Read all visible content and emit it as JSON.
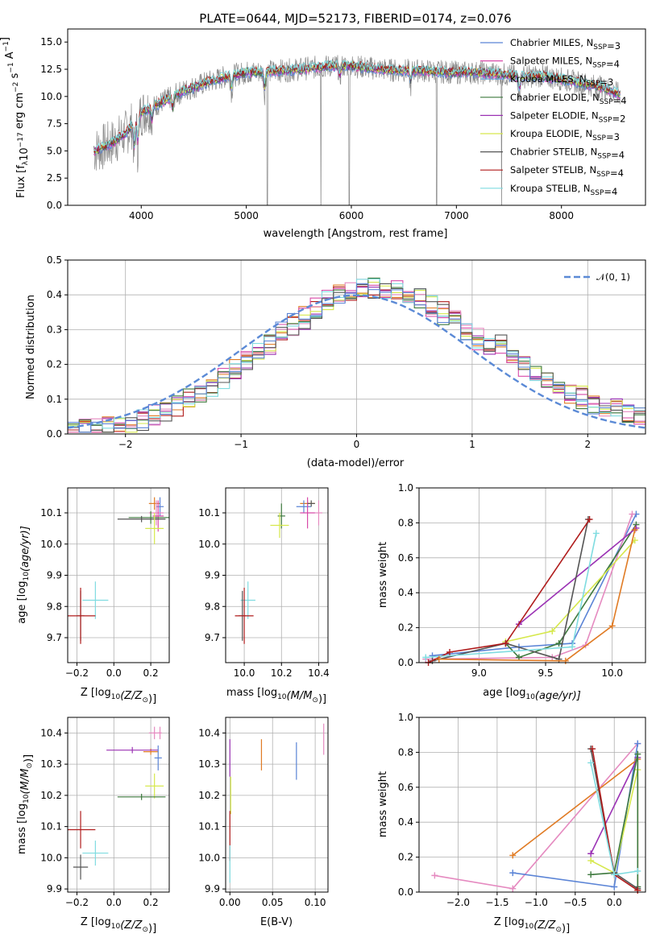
{
  "colors": {
    "cm": "#5b84d6",
    "sm": "#d84aa9",
    "km": "#6aa6d6",
    "ce": "#3f7a3f",
    "se": "#9b32b4",
    "ke": "#d6e84c",
    "cs": "#555555",
    "ss": "#b01c1c",
    "ks": "#7fdce0",
    "orange": "#e07b24",
    "pink": "#e58ac0",
    "observed": "#8a8a8a",
    "normal": "#5b8ad6"
  },
  "chart_data": [
    {
      "id": "spectrum",
      "type": "line",
      "title": "PLATE=0644, MJD=52173, FIBERID=0174, z=0.076",
      "xlabel": "wavelength [Angstrom, rest frame]",
      "ylabel_parts": [
        "Flux [f",
        "λ",
        "10",
        "−17",
        " erg cm",
        "−2",
        " s",
        "−1",
        " A",
        "−1",
        "]"
      ],
      "xlim": [
        3300,
        8800
      ],
      "ylim": [
        0,
        16.2
      ],
      "xticks": [
        4000,
        5000,
        6000,
        7000,
        8000
      ],
      "yticks": [
        0.0,
        2.5,
        5.0,
        7.5,
        10.0,
        12.5,
        15.0
      ],
      "continuum_x": [
        3550,
        3700,
        3850,
        4000,
        4200,
        4400,
        4600,
        4800,
        5000,
        5200,
        5400,
        5600,
        5800,
        6000,
        6200,
        6400,
        6600,
        6800,
        7000,
        7200,
        7400,
        7600,
        7800,
        8000,
        8200,
        8400,
        8550
      ],
      "continuum_y": [
        5.0,
        5.6,
        6.6,
        8.5,
        9.5,
        10.5,
        11.2,
        11.8,
        12.2,
        12.3,
        12.4,
        12.6,
        12.8,
        12.8,
        12.6,
        12.4,
        12.4,
        12.3,
        12.2,
        12.2,
        12.1,
        11.8,
        11.9,
        11.6,
        11.2,
        10.8,
        10.2
      ],
      "legend": [
        {
          "label": "Chabrier MILES, N",
          "sub": "SSP",
          "tail": "=3",
          "color": "cm"
        },
        {
          "label": "Salpeter MILES, N",
          "sub": "SSP",
          "tail": "=4",
          "color": "sm"
        },
        {
          "label": "Kroupa MILES, N",
          "sub": "SSP",
          "tail": "=3",
          "color": "km"
        },
        {
          "label": "Chabrier ELODIE, N",
          "sub": "SSP",
          "tail": "=4",
          "color": "ce"
        },
        {
          "label": "Salpeter ELODIE, N",
          "sub": "SSP",
          "tail": "=2",
          "color": "se"
        },
        {
          "label": "Kroupa ELODIE, N",
          "sub": "SSP",
          "tail": "=3",
          "color": "ke"
        },
        {
          "label": "Chabrier STELIB, N",
          "sub": "SSP",
          "tail": "=4",
          "color": "cs"
        },
        {
          "label": "Salpeter STELIB, N",
          "sub": "SSP",
          "tail": "=4",
          "color": "ss"
        },
        {
          "label": "Kroupa STELIB, N",
          "sub": "SSP",
          "tail": "=4",
          "color": "ks"
        }
      ]
    },
    {
      "id": "residuals",
      "type": "line",
      "xlabel": "(data-model)/error",
      "ylabel": "Normed distribution",
      "xlim": [
        -2.5,
        2.5
      ],
      "ylim": [
        0,
        0.5
      ],
      "xticks": [
        -2,
        -1,
        0,
        1,
        2
      ],
      "xtick_labels": [
        "−2",
        "−1",
        "0",
        "1",
        "2"
      ],
      "yticks": [
        0.0,
        0.1,
        0.2,
        0.3,
        0.4,
        0.5
      ],
      "legend": "𝒩(0, 1)",
      "bin_width": 0.1,
      "series_colors": [
        "orange",
        "ss",
        "se",
        "sm",
        "pink",
        "ke",
        "ce",
        "ks",
        "cs",
        "cm"
      ]
    },
    {
      "id": "z_age",
      "type": "scatter",
      "xlabel_pre": "Z [log",
      "xlabel_sub": "10",
      "xlabel_post": "(Z/Z",
      "xlabel_end": ")]",
      "ylabel_pre": "age  [log",
      "ylabel_sub": "10",
      "ylabel_post": "(age/yr)]",
      "xlim": [
        -0.25,
        0.3
      ],
      "ylim": [
        9.62,
        10.18
      ],
      "xticks": [
        -0.2,
        0.0,
        0.2
      ],
      "xtick_labels": [
        "−0.2",
        "0.0",
        "0.2"
      ],
      "yticks": [
        9.7,
        9.8,
        9.9,
        10.0,
        10.1
      ],
      "points": [
        {
          "x": 0.22,
          "y": 10.13,
          "xerr": 0.03,
          "yerr": 0.02,
          "color": "orange"
        },
        {
          "x": 0.25,
          "y": 10.12,
          "xerr": 0.02,
          "yerr": 0.03,
          "color": "cm"
        },
        {
          "x": 0.23,
          "y": 10.1,
          "xerr": 0.04,
          "yerr": 0.04,
          "color": "pink"
        },
        {
          "x": 0.24,
          "y": 10.09,
          "xerr": 0.03,
          "yerr": 0.05,
          "color": "sm"
        },
        {
          "x": 0.2,
          "y": 10.085,
          "xerr": 0.12,
          "yerr": 0.02,
          "color": "ce"
        },
        {
          "x": 0.15,
          "y": 10.08,
          "xerr": 0.13,
          "yerr": 0.01,
          "color": "cs"
        },
        {
          "x": 0.22,
          "y": 10.05,
          "xerr": 0.05,
          "yerr": 0.05,
          "color": "ke"
        },
        {
          "x": -0.1,
          "y": 9.82,
          "xerr": 0.07,
          "yerr": 0.06,
          "color": "ks"
        },
        {
          "x": -0.18,
          "y": 9.77,
          "xerr": 0.02,
          "yerr": 0.08,
          "color": "cs"
        },
        {
          "x": -0.18,
          "y": 9.77,
          "xerr": 0.08,
          "yerr": 0.09,
          "color": "ss"
        }
      ]
    },
    {
      "id": "mass_age",
      "type": "scatter",
      "xlabel_pre": "mass [log",
      "xlabel_sub": "10",
      "xlabel_post": "(M/M",
      "xlabel_end": ")]",
      "xlim": [
        9.9,
        10.45
      ],
      "ylim": [
        9.62,
        10.18
      ],
      "xticks": [
        10.0,
        10.2,
        10.4
      ],
      "xtick_labels": [
        "10.0",
        "10.2",
        "10.4"
      ],
      "yticks": [
        9.7,
        9.8,
        9.9,
        10.0,
        10.1
      ],
      "points": [
        {
          "x": 10.34,
          "y": 10.13,
          "xerr": 0.04,
          "yerr": 0.01,
          "color": "orange"
        },
        {
          "x": 10.32,
          "y": 10.12,
          "xerr": 0.04,
          "yerr": 0.02,
          "color": "cm"
        },
        {
          "x": 10.4,
          "y": 10.1,
          "xerr": 0.02,
          "yerr": 0.04,
          "color": "pink"
        },
        {
          "x": 10.34,
          "y": 10.1,
          "xerr": 0.04,
          "yerr": 0.05,
          "color": "sm"
        },
        {
          "x": 10.2,
          "y": 10.09,
          "xerr": 0.02,
          "yerr": 0.04,
          "color": "ce"
        },
        {
          "x": 10.19,
          "y": 10.06,
          "xerr": 0.05,
          "yerr": 0.04,
          "color": "ke"
        },
        {
          "x": 10.36,
          "y": 10.13,
          "xerr": 0.02,
          "yerr": 0.01,
          "color": "cs"
        },
        {
          "x": 10.02,
          "y": 9.82,
          "xerr": 0.04,
          "yerr": 0.06,
          "color": "ks"
        },
        {
          "x": 9.99,
          "y": 9.77,
          "xerr": 0.02,
          "yerr": 0.08,
          "color": "cs"
        },
        {
          "x": 10.0,
          "y": 9.77,
          "xerr": 0.05,
          "yerr": 0.09,
          "color": "ss"
        }
      ]
    },
    {
      "id": "age_weight",
      "type": "line",
      "xlabel_pre": "age  [log",
      "xlabel_sub": "10",
      "xlabel_post": "(age/yr)]",
      "ylabel": "mass weight",
      "xlim": [
        8.55,
        10.25
      ],
      "ylim": [
        0,
        1
      ],
      "xticks": [
        9.0,
        9.5,
        10.0
      ],
      "xtick_labels": [
        "9.0",
        "9.5",
        "10.0"
      ],
      "yticks": [
        0.0,
        0.2,
        0.4,
        0.6,
        0.8,
        1.0
      ],
      "series": [
        {
          "color": "cm",
          "x": [
            8.65,
            9.3,
            9.7,
            10.18
          ],
          "y": [
            0.04,
            0.09,
            0.11,
            0.85
          ]
        },
        {
          "color": "pink",
          "x": [
            8.6,
            9.55,
            9.8,
            10.15
          ],
          "y": [
            0.02,
            0.03,
            0.1,
            0.85
          ]
        },
        {
          "color": "ce",
          "x": [
            9.2,
            9.3,
            9.6,
            10.18
          ],
          "y": [
            0.11,
            0.03,
            0.11,
            0.79
          ]
        },
        {
          "color": "se",
          "x": [
            9.3,
            10.18
          ],
          "y": [
            0.22,
            0.77
          ]
        },
        {
          "color": "ke",
          "x": [
            9.2,
            9.55,
            10.17
          ],
          "y": [
            0.12,
            0.18,
            0.7
          ]
        },
        {
          "color": "cs",
          "x": [
            8.65,
            9.2,
            9.6,
            9.82
          ],
          "y": [
            0.01,
            0.11,
            0.02,
            0.82
          ]
        },
        {
          "color": "ss",
          "x": [
            8.62,
            8.78,
            9.2,
            9.83
          ],
          "y": [
            0.0,
            0.06,
            0.11,
            0.82
          ]
        },
        {
          "color": "ks",
          "x": [
            8.6,
            9.7,
            9.88
          ],
          "y": [
            0.03,
            0.09,
            0.74
          ]
        },
        {
          "color": "orange",
          "x": [
            8.7,
            9.65,
            10.0,
            10.17
          ],
          "y": [
            0.02,
            0.01,
            0.21,
            0.76
          ]
        }
      ]
    },
    {
      "id": "z_mass",
      "type": "scatter",
      "xlabel_pre": "Z [log",
      "xlabel_sub": "10",
      "xlabel_post": "(Z/Z",
      "xlabel_end": ")]",
      "ylabel_pre": "mass [log",
      "ylabel_sub": "10",
      "ylabel_post": "(M/M",
      "ylabel_end": ")]",
      "xlim": [
        -0.25,
        0.3
      ],
      "ylim": [
        9.89,
        10.45
      ],
      "xticks": [
        -0.2,
        0.0,
        0.2
      ],
      "xtick_labels": [
        "−0.2",
        "0.0",
        "0.2"
      ],
      "yticks": [
        9.9,
        10.0,
        10.1,
        10.2,
        10.3,
        10.4
      ],
      "points": [
        {
          "x": 0.22,
          "y": 10.4,
          "xerr": 0.03,
          "yerr": 0.02,
          "color": "pink"
        },
        {
          "x": 0.25,
          "y": 10.4,
          "xerr": 0.01,
          "yerr": 0.02,
          "color": "pink"
        },
        {
          "x": 0.2,
          "y": 10.34,
          "xerr": 0.04,
          "yerr": 0.01,
          "color": "orange"
        },
        {
          "x": 0.1,
          "y": 10.345,
          "xerr": 0.14,
          "yerr": 0.01,
          "color": "se"
        },
        {
          "x": 0.24,
          "y": 10.32,
          "xerr": 0.02,
          "yerr": 0.04,
          "color": "cm"
        },
        {
          "x": 0.22,
          "y": 10.23,
          "xerr": 0.05,
          "yerr": 0.04,
          "color": "ke"
        },
        {
          "x": 0.15,
          "y": 10.195,
          "xerr": 0.13,
          "yerr": 0.01,
          "color": "ce"
        },
        {
          "x": -0.18,
          "y": 10.09,
          "xerr": 0.08,
          "yerr": 0.06,
          "color": "ss"
        },
        {
          "x": -0.1,
          "y": 10.015,
          "xerr": 0.07,
          "yerr": 0.04,
          "color": "ks"
        },
        {
          "x": -0.18,
          "y": 9.97,
          "xerr": 0.04,
          "yerr": 0.04,
          "color": "cs"
        }
      ]
    },
    {
      "id": "ebv_mass",
      "type": "scatter",
      "xlabel": "E(B-V)",
      "xlim": [
        -0.005,
        0.115
      ],
      "ylim": [
        9.89,
        10.45
      ],
      "xticks": [
        0.0,
        0.05,
        0.1
      ],
      "xtick_labels": [
        "0.00",
        "0.05",
        "0.10"
      ],
      "yticks": [
        9.9,
        10.0,
        10.1,
        10.2,
        10.3,
        10.4
      ],
      "points": [
        {
          "x": 0.11,
          "y": 10.38,
          "yerr": 0.05,
          "color": "pink"
        },
        {
          "x": 0.037,
          "y": 10.33,
          "yerr": 0.05,
          "color": "orange"
        },
        {
          "x": 0.078,
          "y": 10.31,
          "yerr": 0.06,
          "color": "cm"
        },
        {
          "x": 0.0,
          "y": 10.32,
          "yerr": 0.06,
          "color": "se"
        },
        {
          "x": 0.001,
          "y": 10.2,
          "yerr": 0.06,
          "color": "ke"
        },
        {
          "x": 0.0,
          "y": 10.07,
          "yerr": 0.08,
          "color": "ss"
        },
        {
          "x": 0.0,
          "y": 9.98,
          "yerr": 0.06,
          "color": "ks"
        }
      ]
    },
    {
      "id": "z_weight",
      "type": "line",
      "xlabel_pre": "Z [log",
      "xlabel_sub": "10",
      "xlabel_post": "(Z/Z",
      "xlabel_end": ")]",
      "ylabel": "mass weight",
      "xlim": [
        -2.5,
        0.4
      ],
      "ylim": [
        0,
        1
      ],
      "xticks": [
        -2.0,
        -1.5,
        -1.0,
        -0.5,
        0.0
      ],
      "xtick_labels": [
        "−2.0",
        "−1.5",
        "−1.0",
        "−0.5",
        "0.0"
      ],
      "yticks": [
        0.0,
        0.2,
        0.4,
        0.6,
        0.8,
        1.0
      ],
      "series": [
        {
          "color": "pink",
          "x": [
            -2.3,
            -1.3,
            0.3
          ],
          "y": [
            0.095,
            0.02,
            0.85
          ]
        },
        {
          "color": "cm",
          "x": [
            -1.3,
            0.0,
            0.3
          ],
          "y": [
            0.11,
            0.03,
            0.85
          ]
        },
        {
          "color": "orange",
          "x": [
            -1.3,
            0.3,
            0.3
          ],
          "y": [
            0.21,
            0.76,
            0.01
          ]
        },
        {
          "color": "se",
          "x": [
            -0.3,
            0.3
          ],
          "y": [
            0.22,
            0.77
          ]
        },
        {
          "color": "ke",
          "x": [
            -0.3,
            0.0,
            0.3
          ],
          "y": [
            0.18,
            0.11,
            0.7
          ]
        },
        {
          "color": "ce",
          "x": [
            -0.3,
            0.0,
            0.3,
            0.3
          ],
          "y": [
            0.1,
            0.11,
            0.79,
            0.03
          ]
        },
        {
          "color": "cs",
          "x": [
            -0.3,
            0.0,
            0.3
          ],
          "y": [
            0.82,
            0.11,
            0.02
          ]
        },
        {
          "color": "ss",
          "x": [
            -0.28,
            0.0,
            0.3
          ],
          "y": [
            0.82,
            0.1,
            0.01
          ]
        },
        {
          "color": "ks",
          "x": [
            -0.3,
            0.0,
            0.3
          ],
          "y": [
            0.74,
            0.1,
            0.12
          ]
        }
      ]
    }
  ]
}
